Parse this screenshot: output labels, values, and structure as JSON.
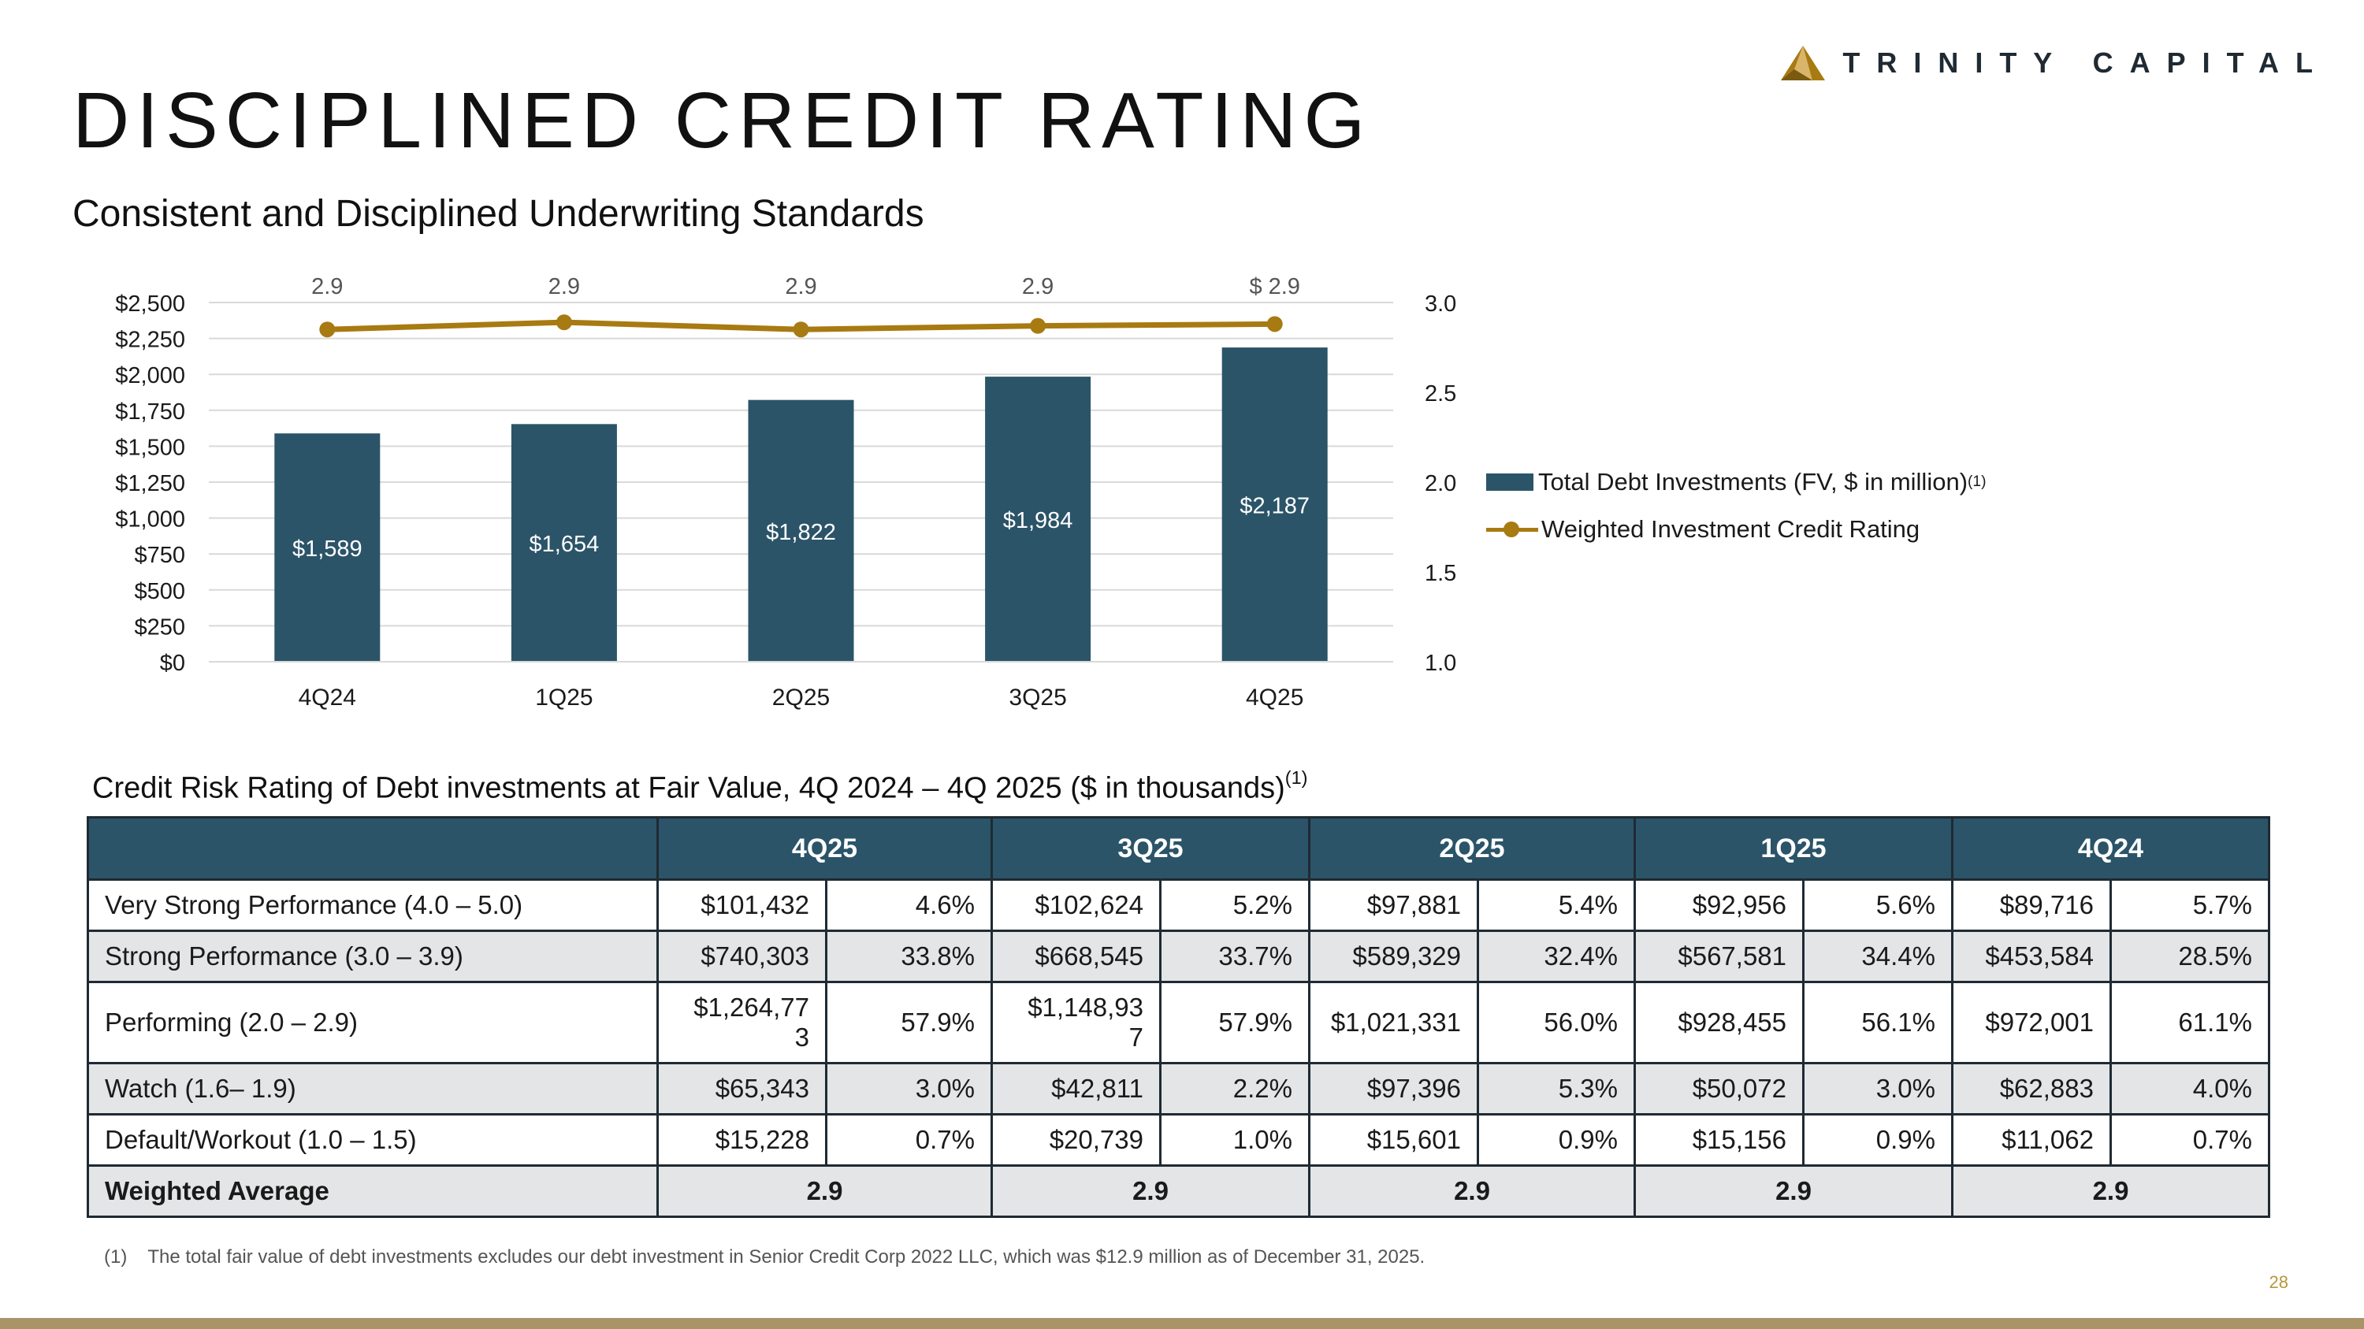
{
  "brand": {
    "name": "TRINITY CAPITAL",
    "accent": "#a87a12",
    "primary": "#2b5468"
  },
  "slide": {
    "title": "DISCIPLINED CREDIT RATING",
    "subtitle": "Consistent and Disciplined Underwriting Standards",
    "page_number": "28"
  },
  "chart_data": {
    "type": "bar",
    "categories": [
      "4Q24",
      "1Q25",
      "2Q25",
      "3Q25",
      "4Q25"
    ],
    "series": [
      {
        "name": "Total Debt Investments (FV, $ in million)",
        "name_sup": "(1)",
        "type": "bar",
        "axis": "left",
        "values": [
          1589,
          1654,
          1822,
          1984,
          2187
        ],
        "labels": [
          "$1,589",
          "$1,654",
          "$1,822",
          "$1,984",
          "$2,187"
        ]
      },
      {
        "name": "Weighted Investment Credit Rating",
        "type": "line",
        "axis": "right",
        "values": [
          2.85,
          2.89,
          2.85,
          2.87,
          2.88
        ],
        "labels": [
          "2.9",
          "2.9",
          "2.9",
          "2.9",
          "$ 2.9"
        ]
      }
    ],
    "y_left": {
      "min": 0,
      "max": 2500,
      "ticks": [
        "$0",
        "$250",
        "$500",
        "$750",
        "$1,000",
        "$1,250",
        "$1,500",
        "$1,750",
        "$2,000",
        "$2,250",
        "$2,500"
      ]
    },
    "y_right": {
      "min": 1.0,
      "max": 3.0,
      "ticks": [
        "1.0",
        "1.5",
        "2.0",
        "2.5",
        "3.0"
      ]
    },
    "grid": true,
    "legend_position": "right"
  },
  "table": {
    "caption": "Credit Risk Rating of Debt investments at Fair Value, 4Q 2024 – 4Q 2025 ($ in thousands)",
    "caption_sup": "(1)",
    "columns": [
      "4Q25",
      "3Q25",
      "2Q25",
      "1Q25",
      "4Q24"
    ],
    "rows": [
      {
        "label": "Very Strong Performance (4.0 – 5.0)",
        "cells": [
          "$101,432",
          "4.6%",
          "$102,624",
          "5.2%",
          "$97,881",
          "5.4%",
          "$92,956",
          "5.6%",
          "$89,716",
          "5.7%"
        ]
      },
      {
        "label": "Strong Performance (3.0 – 3.9)",
        "cells": [
          "$740,303",
          "33.8%",
          "$668,545",
          "33.7%",
          "$589,329",
          "32.4%",
          "$567,581",
          "34.4%",
          "$453,584",
          "28.5%"
        ]
      },
      {
        "label": "Performing (2.0 – 2.9)",
        "cells": [
          "$1,264,77\n3",
          "57.9%",
          "$1,148,93\n7",
          "57.9%",
          "$1,021,331",
          "56.0%",
          "$928,455",
          "56.1%",
          "$972,001",
          "61.1%"
        ]
      },
      {
        "label": "Watch (1.6– 1.9)",
        "cells": [
          "$65,343",
          "3.0%",
          "$42,811",
          "2.2%",
          "$97,396",
          "5.3%",
          "$50,072",
          "3.0%",
          "$62,883",
          "4.0%"
        ]
      },
      {
        "label": "Default/Workout (1.0 – 1.5)",
        "cells": [
          "$15,228",
          "0.7%",
          "$20,739",
          "1.0%",
          "$15,601",
          "0.9%",
          "$15,156",
          "0.9%",
          "$11,062",
          "0.7%"
        ]
      }
    ],
    "average": {
      "label": "Weighted Average",
      "values": [
        "2.9",
        "2.9",
        "2.9",
        "2.9",
        "2.9"
      ]
    }
  },
  "footnote": {
    "marker": "(1)",
    "text": "The total fair value of debt investments excludes our debt investment in Senior Credit Corp 2022 LLC, which was $12.9 million as of December 31, 2025."
  }
}
